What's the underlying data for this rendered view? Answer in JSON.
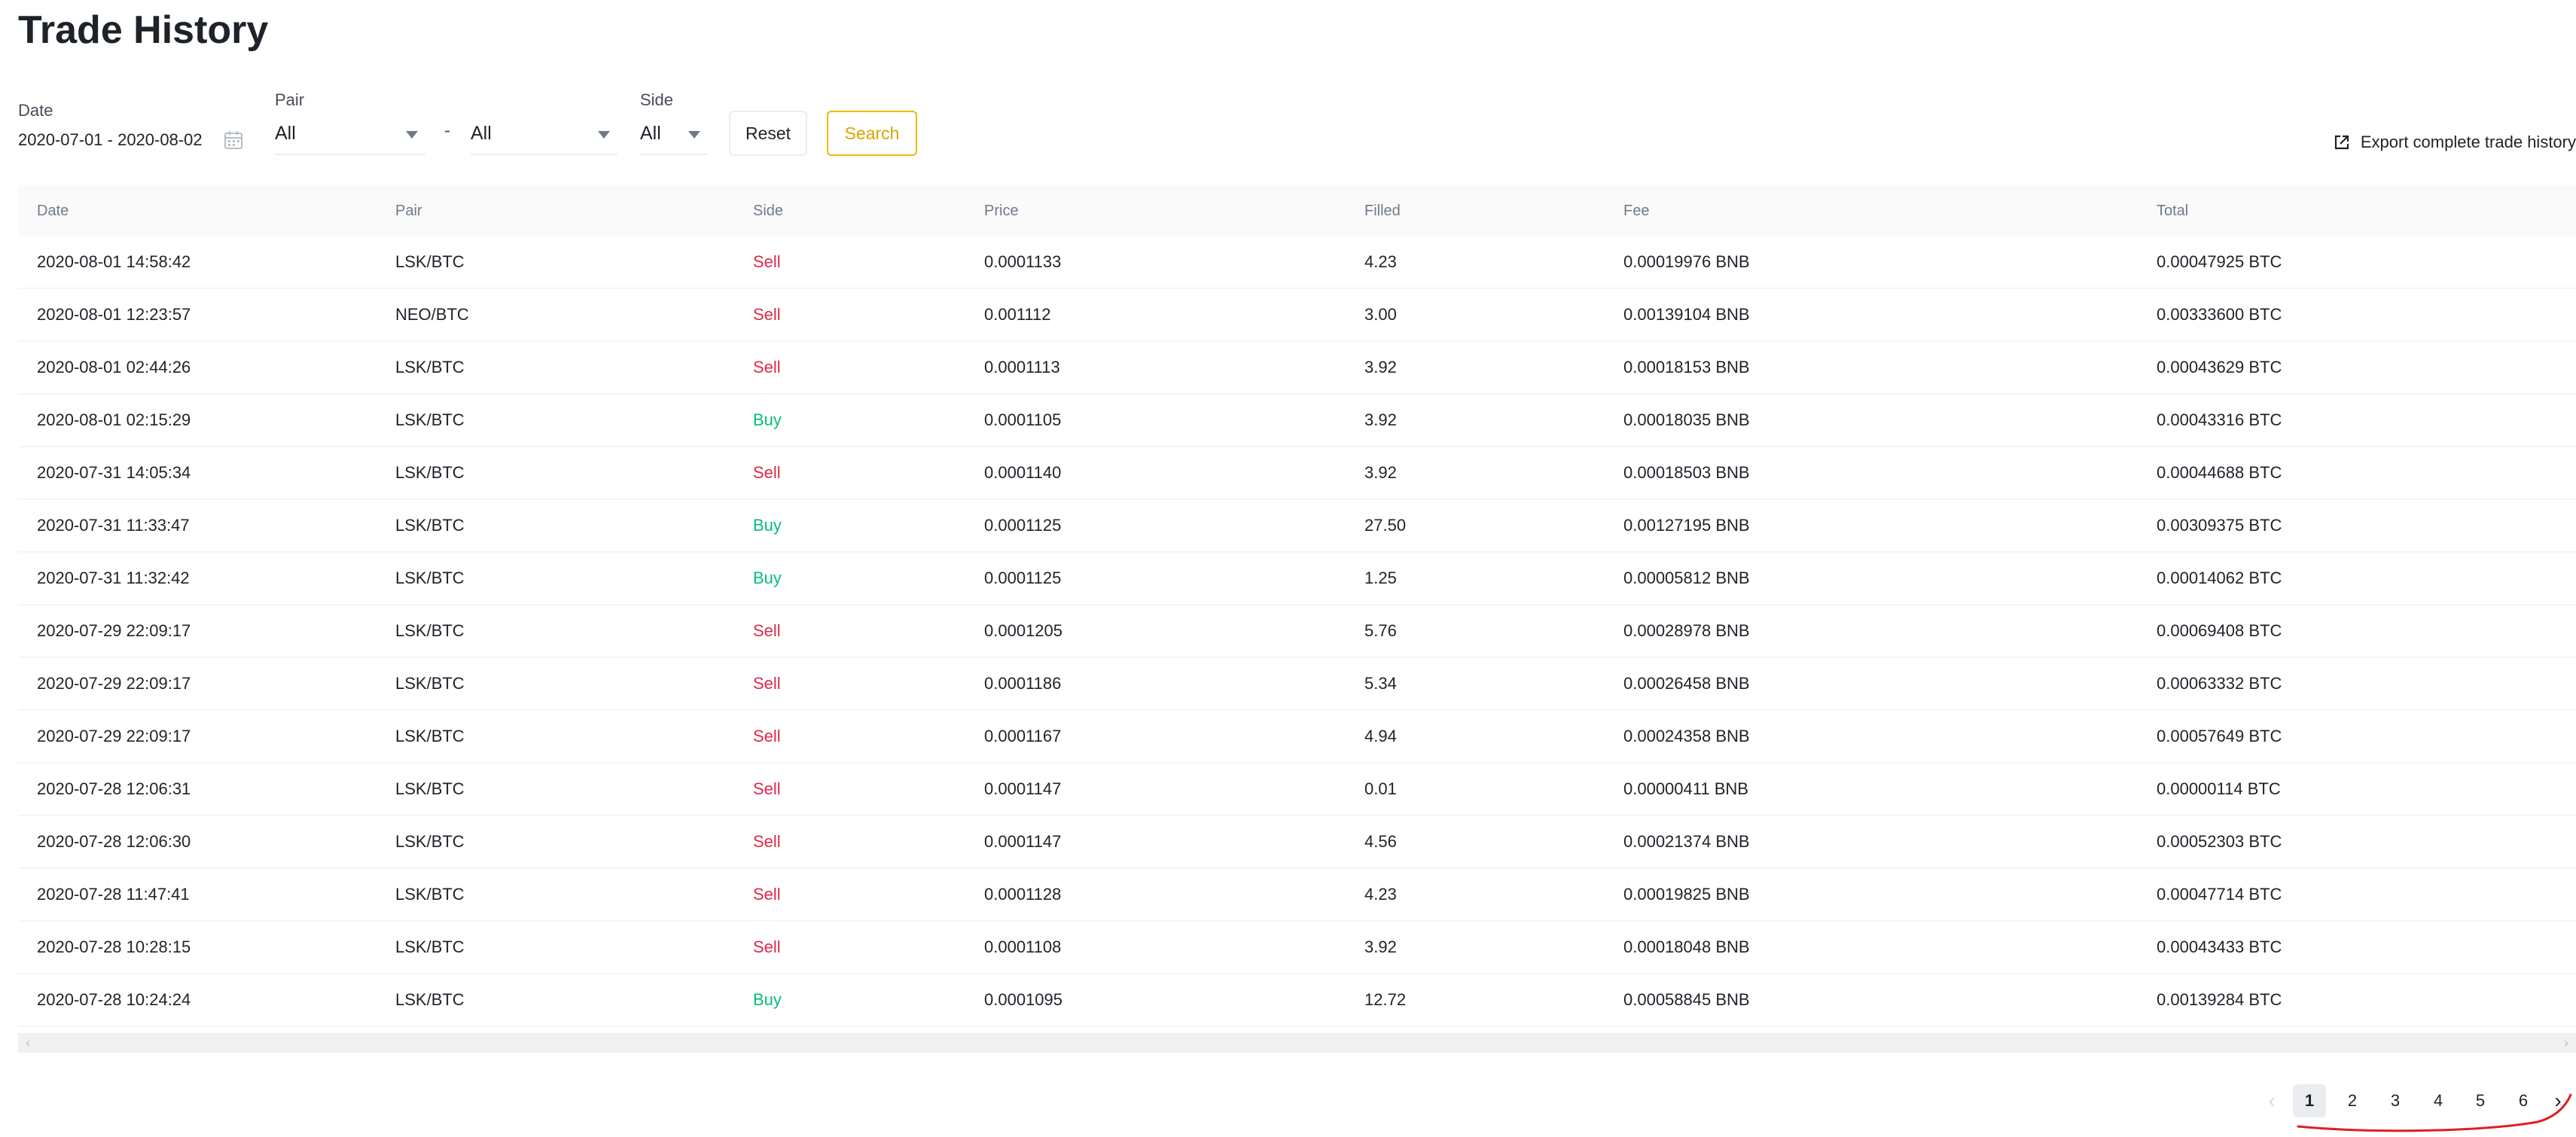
{
  "page": {
    "title": "Trade History"
  },
  "filters": {
    "date_label": "Date",
    "date_value": "2020-07-01 - 2020-08-02",
    "pair_label": "Pair",
    "pair_base": "All",
    "pair_separator": "-",
    "pair_quote": "All",
    "side_label": "Side",
    "side_value": "All",
    "reset_label": "Reset",
    "search_label": "Search"
  },
  "export_label": "Export complete trade history",
  "table": {
    "columns": [
      "Date",
      "Pair",
      "Side",
      "Price",
      "Filled",
      "Fee",
      "Total"
    ],
    "rows": [
      [
        "2020-08-01 14:58:42",
        "LSK/BTC",
        "Sell",
        "0.0001133",
        "4.23",
        "0.00019976 BNB",
        "0.00047925 BTC"
      ],
      [
        "2020-08-01 12:23:57",
        "NEO/BTC",
        "Sell",
        "0.001112",
        "3.00",
        "0.00139104 BNB",
        "0.00333600 BTC"
      ],
      [
        "2020-08-01 02:44:26",
        "LSK/BTC",
        "Sell",
        "0.0001113",
        "3.92",
        "0.00018153 BNB",
        "0.00043629 BTC"
      ],
      [
        "2020-08-01 02:15:29",
        "LSK/BTC",
        "Buy",
        "0.0001105",
        "3.92",
        "0.00018035 BNB",
        "0.00043316 BTC"
      ],
      [
        "2020-07-31 14:05:34",
        "LSK/BTC",
        "Sell",
        "0.0001140",
        "3.92",
        "0.00018503 BNB",
        "0.00044688 BTC"
      ],
      [
        "2020-07-31 11:33:47",
        "LSK/BTC",
        "Buy",
        "0.0001125",
        "27.50",
        "0.00127195 BNB",
        "0.00309375 BTC"
      ],
      [
        "2020-07-31 11:32:42",
        "LSK/BTC",
        "Buy",
        "0.0001125",
        "1.25",
        "0.00005812 BNB",
        "0.00014062 BTC"
      ],
      [
        "2020-07-29 22:09:17",
        "LSK/BTC",
        "Sell",
        "0.0001205",
        "5.76",
        "0.00028978 BNB",
        "0.00069408 BTC"
      ],
      [
        "2020-07-29 22:09:17",
        "LSK/BTC",
        "Sell",
        "0.0001186",
        "5.34",
        "0.00026458 BNB",
        "0.00063332 BTC"
      ],
      [
        "2020-07-29 22:09:17",
        "LSK/BTC",
        "Sell",
        "0.0001167",
        "4.94",
        "0.00024358 BNB",
        "0.00057649 BTC"
      ],
      [
        "2020-07-28 12:06:31",
        "LSK/BTC",
        "Sell",
        "0.0001147",
        "0.01",
        "0.00000411 BNB",
        "0.00000114 BTC"
      ],
      [
        "2020-07-28 12:06:30",
        "LSK/BTC",
        "Sell",
        "0.0001147",
        "4.56",
        "0.00021374 BNB",
        "0.00052303 BTC"
      ],
      [
        "2020-07-28 11:47:41",
        "LSK/BTC",
        "Sell",
        "0.0001128",
        "4.23",
        "0.00019825 BNB",
        "0.00047714 BTC"
      ],
      [
        "2020-07-28 10:28:15",
        "LSK/BTC",
        "Sell",
        "0.0001108",
        "3.92",
        "0.00018048 BNB",
        "0.00043433 BTC"
      ],
      [
        "2020-07-28 10:24:24",
        "LSK/BTC",
        "Buy",
        "0.0001095",
        "12.72",
        "0.00058845 BNB",
        "0.00139284 BTC"
      ]
    ]
  },
  "pagination": {
    "pages": [
      "1",
      "2",
      "3",
      "4",
      "5",
      "6"
    ],
    "current": "1",
    "prev_icon": "chevron-left-icon",
    "next_icon": "chevron-right-icon"
  },
  "colors": {
    "sell": "#e0294a",
    "buy": "#02c076",
    "accent": "#f0b90b",
    "annotation": "#e02020"
  }
}
